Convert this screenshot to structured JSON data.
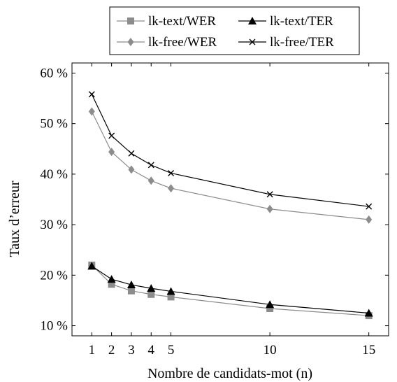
{
  "chart_data": {
    "type": "line",
    "title": "",
    "xlabel": "Nombre de candidats-mot (n)",
    "ylabel": "Taux d’erreur",
    "x": [
      1,
      2,
      3,
      4,
      5,
      10,
      15
    ],
    "xticks": [
      1,
      2,
      3,
      4,
      5,
      10,
      15
    ],
    "yticks": [
      10,
      20,
      30,
      40,
      50,
      60
    ],
    "ytick_suffix": " %",
    "xlim": [
      0,
      16
    ],
    "ylim": [
      8,
      62
    ],
    "grid": false,
    "legend_position": "top",
    "series": [
      {
        "name": "lk-text/WER",
        "marker": "square",
        "color": "#8c8c8c",
        "values": [
          22.0,
          18.2,
          16.9,
          16.2,
          15.7,
          13.4,
          12.0
        ]
      },
      {
        "name": "lk-text/TER",
        "marker": "triangle",
        "color": "#000000",
        "values": [
          21.8,
          19.2,
          18.1,
          17.4,
          16.8,
          14.2,
          12.5
        ]
      },
      {
        "name": "lk-free/WER",
        "marker": "diamond",
        "color": "#8c8c8c",
        "values": [
          52.4,
          44.4,
          40.9,
          38.7,
          37.2,
          33.1,
          31.0
        ]
      },
      {
        "name": "lk-free/TER",
        "marker": "cross",
        "color": "#000000",
        "values": [
          55.8,
          47.6,
          44.1,
          41.8,
          40.2,
          36.0,
          33.6
        ]
      }
    ]
  }
}
